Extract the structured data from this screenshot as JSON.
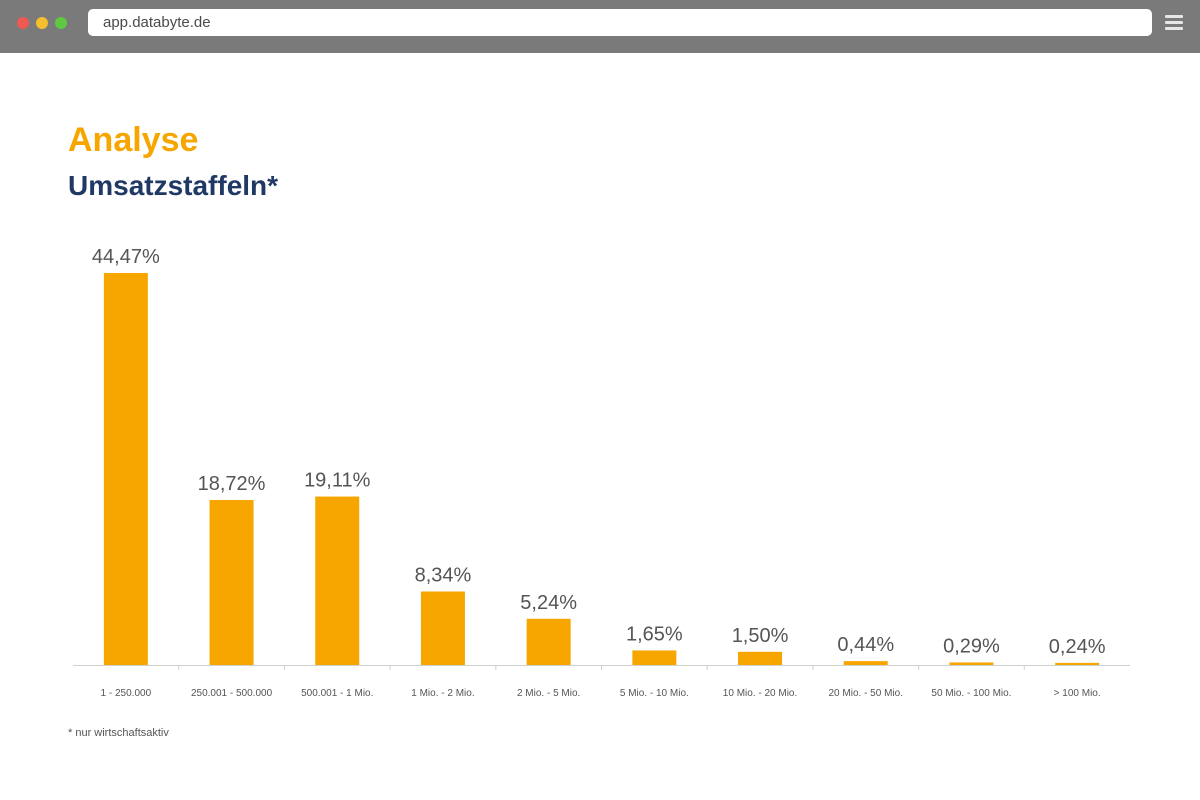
{
  "browser": {
    "url": "app.databyte.de",
    "traffic_lights": [
      "#ee5a52",
      "#f4be2e",
      "#5ec840"
    ]
  },
  "page": {
    "title": "Analyse",
    "subtitle": "Umsatzstaffeln*",
    "footnote": "* nur wirtschaftsaktiv"
  },
  "colors": {
    "accent": "#f7a600",
    "navy": "#1f3864",
    "label": "#555555",
    "axis": "#d0d0d0"
  },
  "chart_data": {
    "type": "bar",
    "categories": [
      "1 - 250.000",
      "250.001 - 500.000",
      "500.001 - 1 Mio.",
      "1 Mio. - 2 Mio.",
      "2 Mio. - 5 Mio.",
      "5 Mio. - 10 Mio.",
      "10 Mio. - 20 Mio.",
      "20 Mio. - 50 Mio.",
      "50 Mio. - 100 Mio.",
      "> 100 Mio."
    ],
    "values": [
      44.47,
      18.72,
      19.11,
      8.34,
      5.24,
      1.65,
      1.5,
      0.44,
      0.29,
      0.24
    ],
    "data_labels": [
      "44,47%",
      "18,72%",
      "19,11%",
      "8,34%",
      "5,24%",
      "1,65%",
      "1,50%",
      "0,44%",
      "0,29%",
      "0,24%"
    ],
    "ylim": [
      0,
      44.47
    ],
    "grid": false,
    "legend": "none"
  }
}
